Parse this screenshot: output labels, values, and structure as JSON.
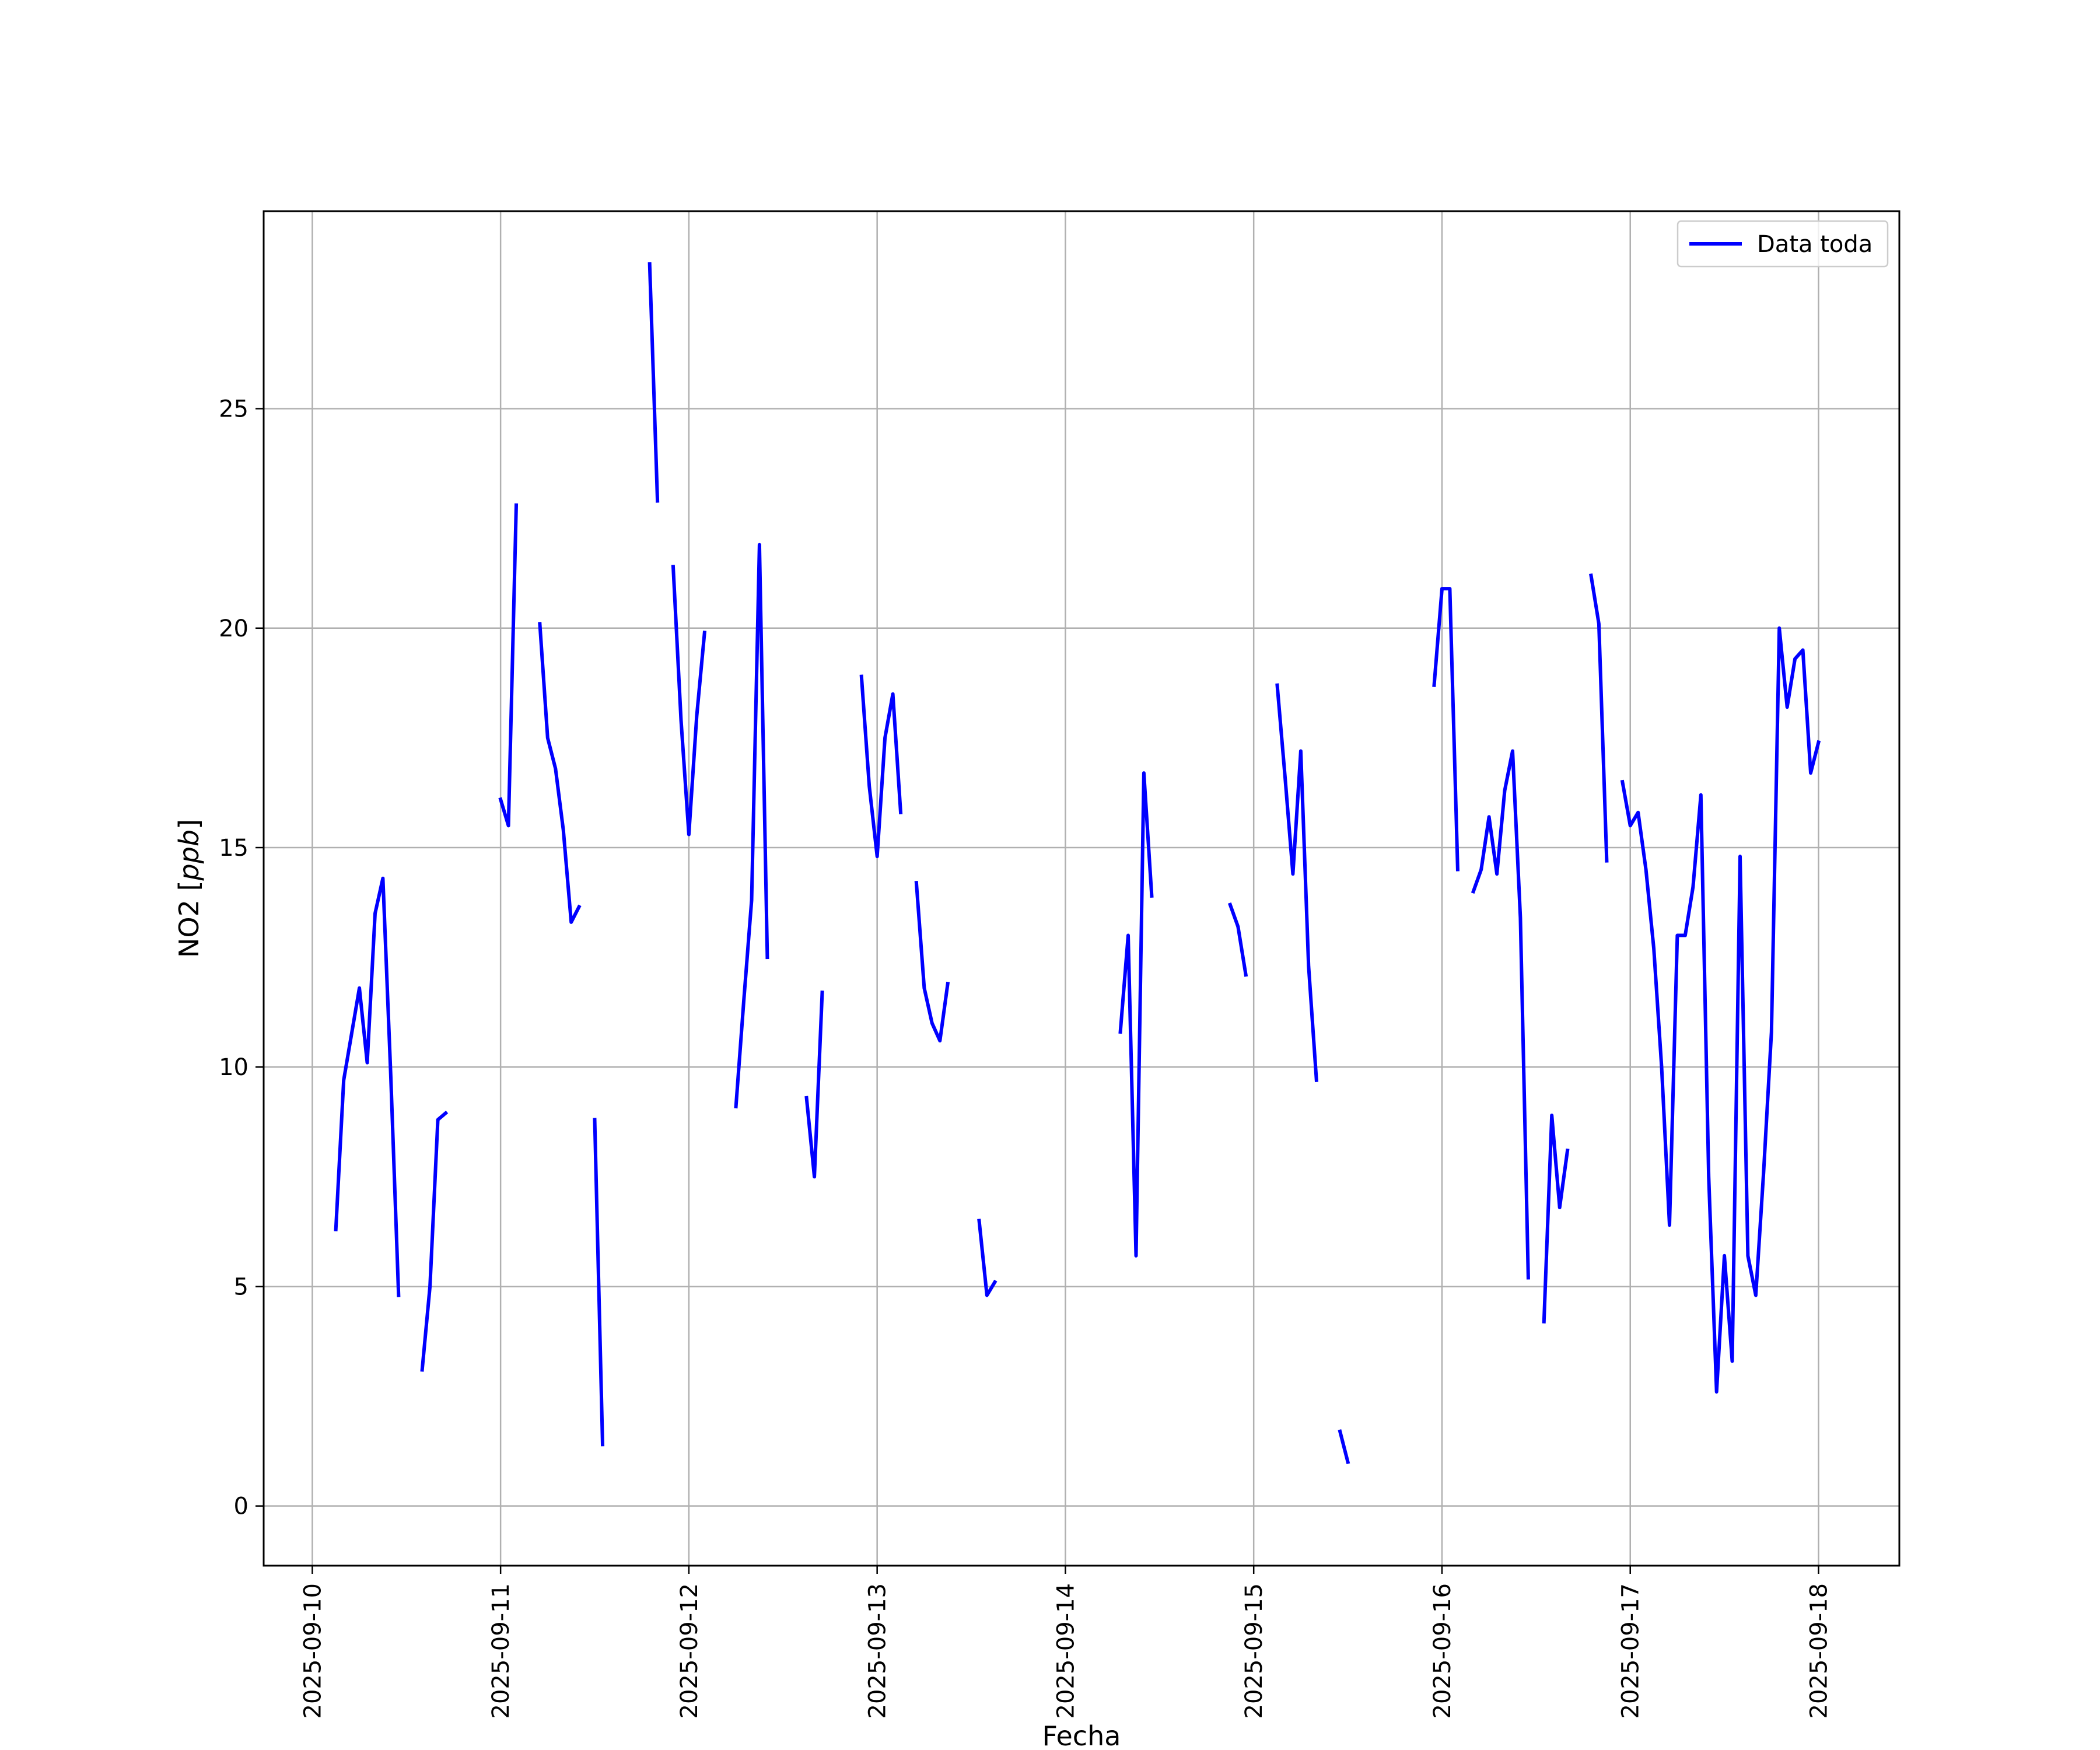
{
  "chart_data": {
    "type": "line",
    "xlabel": "Fecha",
    "ylabel": "NO2 [ppb]",
    "ylabel_main": "NO2 [",
    "ylabel_unit": "ppb",
    "ylabel_close": "]",
    "x_type": "date",
    "xlim": [
      "2025-09-09T17:48",
      "2025-09-18T10:18"
    ],
    "ylim": [
      -1.36,
      29.5
    ],
    "x_ticks": [
      "2025-09-10",
      "2025-09-11",
      "2025-09-12",
      "2025-09-13",
      "2025-09-14",
      "2025-09-15",
      "2025-09-16",
      "2025-09-17",
      "2025-09-18"
    ],
    "y_ticks": [
      0,
      5,
      10,
      15,
      20,
      25
    ],
    "y_tick_labels": [
      "0",
      "5",
      "10",
      "15",
      "20",
      "25"
    ],
    "grid": true,
    "legend_position": "top-right",
    "series": [
      {
        "name": "Data toda",
        "color": "#0000ff",
        "segments": [
          [
            [
              "2025-09-10T03:00",
              6.3
            ],
            [
              "2025-09-10T04:00",
              9.7
            ],
            [
              "2025-09-10T06:00",
              11.8
            ],
            [
              "2025-09-10T07:00",
              10.1
            ],
            [
              "2025-09-10T08:00",
              13.5
            ],
            [
              "2025-09-10T09:00",
              14.3
            ],
            [
              "2025-09-10T10:00",
              9.8
            ],
            [
              "2025-09-10T11:00",
              4.8
            ]
          ],
          [
            [
              "2025-09-10T14:00",
              3.1
            ],
            [
              "2025-09-10T15:00",
              5.0
            ],
            [
              "2025-09-10T16:00",
              8.8
            ],
            [
              "2025-09-10T17:00",
              8.95
            ]
          ],
          [
            [
              "2025-09-11T00:00",
              16.1
            ],
            [
              "2025-09-11T01:00",
              15.5
            ],
            [
              "2025-09-11T02:00",
              22.8
            ]
          ],
          [
            [
              "2025-09-11T05:00",
              20.1
            ],
            [
              "2025-09-11T06:00",
              17.5
            ],
            [
              "2025-09-11T07:00",
              16.8
            ],
            [
              "2025-09-11T08:00",
              15.4
            ],
            [
              "2025-09-11T09:00",
              13.3
            ],
            [
              "2025-09-11T10:00",
              13.65
            ]
          ],
          [
            [
              "2025-09-11T12:00",
              8.8
            ],
            [
              "2025-09-11T13:00",
              1.4
            ]
          ],
          [
            [
              "2025-09-11T19:00",
              28.3
            ],
            [
              "2025-09-11T20:00",
              22.9
            ]
          ],
          [
            [
              "2025-09-11T22:00",
              21.4
            ],
            [
              "2025-09-11T23:00",
              17.9
            ],
            [
              "2025-09-12T00:00",
              15.3
            ],
            [
              "2025-09-12T01:00",
              18.0
            ],
            [
              "2025-09-12T02:00",
              19.9
            ]
          ],
          [
            [
              "2025-09-12T06:00",
              9.1
            ],
            [
              "2025-09-12T07:00",
              11.5
            ],
            [
              "2025-09-12T08:00",
              13.8
            ],
            [
              "2025-09-12T09:00",
              21.9
            ],
            [
              "2025-09-12T10:00",
              12.5
            ]
          ],
          [
            [
              "2025-09-12T15:00",
              9.3
            ],
            [
              "2025-09-12T16:00",
              7.5
            ],
            [
              "2025-09-12T17:00",
              11.7
            ]
          ],
          [
            [
              "2025-09-12T22:00",
              18.9
            ],
            [
              "2025-09-12T23:00",
              16.4
            ],
            [
              "2025-09-13T00:00",
              14.8
            ],
            [
              "2025-09-13T01:00",
              17.5
            ],
            [
              "2025-09-13T02:00",
              18.5
            ],
            [
              "2025-09-13T03:00",
              15.8
            ]
          ],
          [
            [
              "2025-09-13T05:00",
              14.2
            ],
            [
              "2025-09-13T06:00",
              11.8
            ],
            [
              "2025-09-13T07:00",
              11.0
            ],
            [
              "2025-09-13T08:00",
              10.6
            ],
            [
              "2025-09-13T09:00",
              11.9
            ]
          ],
          [
            [
              "2025-09-13T13:00",
              6.5
            ],
            [
              "2025-09-13T14:00",
              4.8
            ],
            [
              "2025-09-13T15:00",
              5.1
            ]
          ],
          [
            [
              "2025-09-14T07:00",
              10.8
            ],
            [
              "2025-09-14T08:00",
              13.0
            ],
            [
              "2025-09-14T09:00",
              5.7
            ],
            [
              "2025-09-14T10:00",
              16.7
            ],
            [
              "2025-09-14T11:00",
              13.9
            ]
          ],
          [
            [
              "2025-09-14T21:00",
              13.7
            ],
            [
              "2025-09-14T22:00",
              13.2
            ],
            [
              "2025-09-14T23:00",
              12.1
            ]
          ],
          [
            [
              "2025-09-15T03:00",
              18.7
            ],
            [
              "2025-09-15T04:00",
              16.6
            ],
            [
              "2025-09-15T05:00",
              14.4
            ],
            [
              "2025-09-15T06:00",
              17.2
            ],
            [
              "2025-09-15T07:00",
              12.3
            ],
            [
              "2025-09-15T08:00",
              9.7
            ]
          ],
          [
            [
              "2025-09-15T11:00",
              1.7
            ],
            [
              "2025-09-15T12:00",
              1.0
            ]
          ],
          [
            [
              "2025-09-15T23:00",
              18.7
            ],
            [
              "2025-09-16T00:00",
              20.9
            ],
            [
              "2025-09-16T01:00",
              20.9
            ],
            [
              "2025-09-16T02:00",
              14.5
            ]
          ],
          [
            [
              "2025-09-16T04:00",
              14.0
            ],
            [
              "2025-09-16T05:00",
              14.5
            ],
            [
              "2025-09-16T06:00",
              15.7
            ],
            [
              "2025-09-16T07:00",
              14.4
            ],
            [
              "2025-09-16T08:00",
              16.3
            ],
            [
              "2025-09-16T09:00",
              17.2
            ],
            [
              "2025-09-16T10:00",
              13.4
            ],
            [
              "2025-09-16T11:00",
              5.2
            ]
          ],
          [
            [
              "2025-09-16T13:00",
              4.2
            ],
            [
              "2025-09-16T14:00",
              8.9
            ],
            [
              "2025-09-16T15:00",
              6.8
            ],
            [
              "2025-09-16T16:00",
              8.1
            ]
          ],
          [
            [
              "2025-09-16T19:00",
              21.2
            ],
            [
              "2025-09-16T20:00",
              20.1
            ],
            [
              "2025-09-16T21:00",
              14.7
            ]
          ],
          [
            [
              "2025-09-16T23:00",
              16.5
            ],
            [
              "2025-09-17T00:00",
              15.5
            ],
            [
              "2025-09-17T01:00",
              15.8
            ],
            [
              "2025-09-17T02:00",
              14.5
            ],
            [
              "2025-09-17T03:00",
              12.7
            ],
            [
              "2025-09-17T04:00",
              10.0
            ],
            [
              "2025-09-17T05:00",
              6.4
            ],
            [
              "2025-09-17T06:00",
              13.0
            ],
            [
              "2025-09-17T07:00",
              13.0
            ],
            [
              "2025-09-17T08:00",
              14.1
            ],
            [
              "2025-09-17T09:00",
              16.2
            ],
            [
              "2025-09-17T10:00",
              7.5
            ],
            [
              "2025-09-17T11:00",
              2.6
            ],
            [
              "2025-09-17T12:00",
              5.7
            ],
            [
              "2025-09-17T13:00",
              3.3
            ],
            [
              "2025-09-17T14:00",
              14.8
            ],
            [
              "2025-09-17T15:00",
              5.7
            ],
            [
              "2025-09-17T16:00",
              4.8
            ],
            [
              "2025-09-17T17:00",
              7.6
            ],
            [
              "2025-09-17T18:00",
              10.8
            ],
            [
              "2025-09-17T19:00",
              20.0
            ],
            [
              "2025-09-17T20:00",
              18.2
            ],
            [
              "2025-09-17T21:00",
              19.3
            ],
            [
              "2025-09-17T22:00",
              19.5
            ],
            [
              "2025-09-17T23:00",
              16.7
            ],
            [
              "2025-09-18T00:00",
              17.4
            ]
          ]
        ]
      }
    ]
  }
}
